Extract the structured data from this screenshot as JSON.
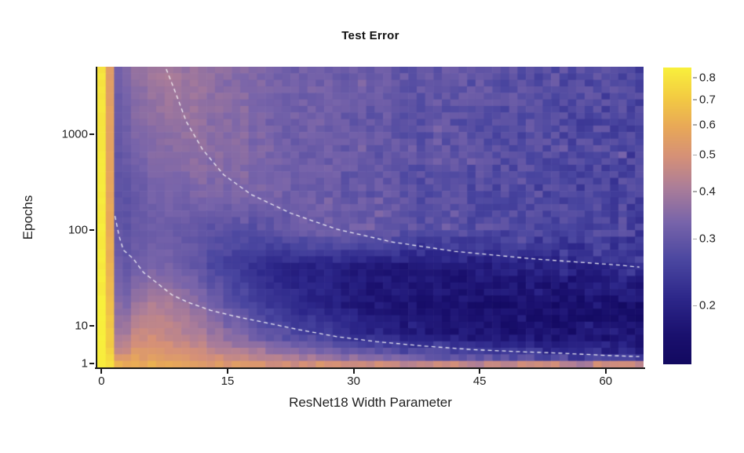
{
  "chart_data": {
    "type": "heatmap",
    "title": "Test Error",
    "xlabel": "ResNet18 Width Parameter",
    "ylabel": "Epochs",
    "x_range": [
      0,
      64
    ],
    "y_range": [
      1,
      4000
    ],
    "x_scale": "linear",
    "y_scale": "log",
    "x_tick_labels": [
      "0",
      "15",
      "30",
      "45",
      "60"
    ],
    "x_tick_values": [
      0,
      15,
      30,
      45,
      60
    ],
    "y_tick_labels": [
      "1",
      "10",
      "100",
      "1000"
    ],
    "y_tick_values": [
      1,
      10,
      100,
      1000
    ],
    "colorbar": {
      "scale": "log",
      "vmin": 0.14,
      "vmax": 0.85,
      "tick_labels": [
        "0.8",
        "0.7",
        "0.6",
        "0.5",
        "0.4",
        "0.3",
        "0.2"
      ],
      "tick_values": [
        0.8,
        0.7,
        0.6,
        0.5,
        0.4,
        0.3,
        0.2
      ]
    },
    "colormap_stops": [
      [
        0.0,
        [
          18,
          9,
          96
        ]
      ],
      [
        0.1,
        [
          26,
          16,
          110
        ]
      ],
      [
        0.22,
        [
          44,
          38,
          137
        ]
      ],
      [
        0.35,
        [
          74,
          70,
          160
        ]
      ],
      [
        0.48,
        [
          120,
          100,
          170
        ]
      ],
      [
        0.6,
        [
          173,
          126,
          152
        ]
      ],
      [
        0.7,
        [
          213,
          144,
          120
        ]
      ],
      [
        0.8,
        [
          232,
          168,
          88
        ]
      ],
      [
        0.9,
        [
          243,
          203,
          66
        ]
      ],
      [
        1.0,
        [
          248,
          240,
          60
        ]
      ]
    ],
    "grid": {
      "widths": [
        0,
        1,
        2,
        3,
        4,
        6,
        8,
        10,
        13,
        16,
        20,
        26,
        32,
        40,
        48,
        56,
        64
      ],
      "epochs": [
        1,
        2,
        4,
        8,
        16,
        40,
        100,
        250,
        600,
        1500,
        4000
      ],
      "test_error": [
        [
          0.85,
          0.8,
          0.62,
          0.6,
          0.6,
          0.59,
          0.58,
          0.56,
          0.54,
          0.52,
          0.5,
          0.48,
          0.47,
          0.46,
          0.45,
          0.44,
          0.44
        ],
        [
          0.85,
          0.76,
          0.55,
          0.55,
          0.56,
          0.55,
          0.54,
          0.52,
          0.5,
          0.47,
          0.44,
          0.4,
          0.36,
          0.32,
          0.29,
          0.27,
          0.26
        ],
        [
          0.85,
          0.72,
          0.46,
          0.47,
          0.52,
          0.52,
          0.5,
          0.48,
          0.45,
          0.42,
          0.38,
          0.33,
          0.29,
          0.26,
          0.23,
          0.21,
          0.2
        ],
        [
          0.84,
          0.71,
          0.4,
          0.4,
          0.46,
          0.47,
          0.45,
          0.43,
          0.39,
          0.34,
          0.29,
          0.25,
          0.21,
          0.18,
          0.17,
          0.17,
          0.17
        ],
        [
          0.84,
          0.67,
          0.36,
          0.34,
          0.38,
          0.42,
          0.41,
          0.38,
          0.33,
          0.28,
          0.24,
          0.2,
          0.18,
          0.17,
          0.16,
          0.16,
          0.16
        ],
        [
          0.83,
          0.63,
          0.32,
          0.3,
          0.31,
          0.33,
          0.33,
          0.31,
          0.27,
          0.24,
          0.21,
          0.19,
          0.18,
          0.18,
          0.19,
          0.2,
          0.22
        ],
        [
          0.83,
          0.6,
          0.3,
          0.29,
          0.3,
          0.31,
          0.31,
          0.3,
          0.29,
          0.28,
          0.29,
          0.32,
          0.31,
          0.28,
          0.27,
          0.26,
          0.26
        ],
        [
          0.82,
          0.58,
          0.29,
          0.29,
          0.3,
          0.32,
          0.33,
          0.33,
          0.34,
          0.34,
          0.33,
          0.31,
          0.3,
          0.28,
          0.27,
          0.26,
          0.26
        ],
        [
          0.82,
          0.57,
          0.3,
          0.31,
          0.32,
          0.34,
          0.35,
          0.36,
          0.36,
          0.35,
          0.33,
          0.31,
          0.3,
          0.29,
          0.28,
          0.27,
          0.26
        ],
        [
          0.81,
          0.56,
          0.31,
          0.32,
          0.34,
          0.36,
          0.37,
          0.38,
          0.36,
          0.35,
          0.33,
          0.32,
          0.3,
          0.29,
          0.28,
          0.27,
          0.26
        ],
        [
          0.81,
          0.55,
          0.32,
          0.34,
          0.36,
          0.38,
          0.4,
          0.38,
          0.37,
          0.35,
          0.33,
          0.32,
          0.31,
          0.3,
          0.29,
          0.28,
          0.26
        ]
      ]
    },
    "contours": {
      "label": "interpolation-threshold-contours",
      "color": "#ffffff",
      "dashed": true,
      "lines": [
        [
          [
            7.7,
            4800
          ],
          [
            8.7,
            2880
          ],
          [
            10.1,
            1350
          ],
          [
            12,
            700
          ],
          [
            14.5,
            380
          ],
          [
            17.8,
            235
          ],
          [
            22.5,
            150
          ],
          [
            28,
            102
          ],
          [
            34.6,
            75
          ],
          [
            42,
            60
          ],
          [
            51.4,
            50
          ],
          [
            61.7,
            43
          ],
          [
            64,
            41
          ]
        ],
        [
          [
            1.6,
            140
          ],
          [
            2.1,
            86
          ],
          [
            2.6,
            62
          ],
          [
            3.8,
            50
          ],
          [
            5,
            36
          ],
          [
            6.6,
            28
          ],
          [
            8.4,
            21
          ],
          [
            10.3,
            17.6
          ],
          [
            13,
            14.5
          ],
          [
            16,
            12.5
          ],
          [
            19.5,
            10.8
          ],
          [
            23.4,
            9.1
          ],
          [
            28,
            7.4
          ],
          [
            32.7,
            6.2
          ],
          [
            38,
            5.2
          ],
          [
            44,
            4.3
          ],
          [
            49.5,
            3.8
          ],
          [
            55,
            3.4
          ],
          [
            60,
            2.9
          ],
          [
            64,
            2.6
          ]
        ]
      ]
    },
    "noise": {
      "base": 0.02,
      "width_scale": 0.11
    }
  }
}
